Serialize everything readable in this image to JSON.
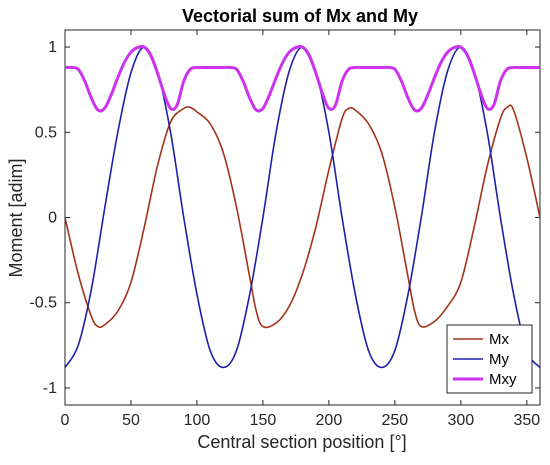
{
  "chart_data": {
    "type": "line",
    "title": "Vectorial sum of Mx and My",
    "xlabel": "Central section position [°]",
    "ylabel": "Moment [adim]",
    "xlim": [
      0,
      360
    ],
    "ylim": [
      -1.1,
      1.1
    ],
    "xticks": [
      0,
      50,
      100,
      150,
      200,
      250,
      300,
      350
    ],
    "xtick_labels": [
      "0",
      "50",
      "100",
      "150",
      "200",
      "250",
      "300",
      "350"
    ],
    "yticks": [
      -1,
      -0.5,
      0,
      0.5,
      1
    ],
    "ytick_labels": [
      "-1",
      "-0.5",
      "0",
      "0.5",
      "1"
    ],
    "grid": false,
    "legend_position": "bottom-right",
    "series": [
      {
        "name": "Mx",
        "color": "#A2331A",
        "x": [
          0,
          10,
          20,
          25,
          30,
          40,
          50,
          60,
          70,
          80,
          90,
          95,
          100,
          110,
          120,
          130,
          140,
          145,
          150,
          160,
          170,
          180,
          190,
          200,
          210,
          215,
          220,
          230,
          240,
          250,
          260,
          265,
          270,
          280,
          290,
          300,
          310,
          320,
          330,
          335,
          340,
          350,
          360
        ],
        "values": [
          0,
          -0.33,
          -0.58,
          -0.64,
          -0.63,
          -0.55,
          -0.38,
          -0.06,
          0.3,
          0.56,
          0.64,
          0.645,
          0.62,
          0.55,
          0.38,
          0.06,
          -0.35,
          -0.55,
          -0.64,
          -0.62,
          -0.52,
          -0.33,
          -0.06,
          0.28,
          0.58,
          0.64,
          0.63,
          0.55,
          0.38,
          0.06,
          -0.35,
          -0.55,
          -0.64,
          -0.61,
          -0.52,
          -0.38,
          -0.06,
          0.3,
          0.58,
          0.645,
          0.63,
          0.35,
          0
        ]
      },
      {
        "name": "My",
        "color": "#1F1FA8",
        "x": [
          0,
          10,
          20,
          30,
          40,
          50,
          60,
          70,
          80,
          90,
          100,
          110,
          120,
          130,
          140,
          150,
          160,
          170,
          180,
          190,
          200,
          210,
          220,
          230,
          240,
          250,
          260,
          270,
          280,
          290,
          300,
          310,
          320,
          330,
          340,
          350,
          360
        ],
        "values": [
          -0.88,
          -0.75,
          -0.42,
          0.05,
          0.5,
          0.85,
          1.0,
          0.86,
          0.5,
          0.0,
          -0.45,
          -0.78,
          -0.88,
          -0.78,
          -0.45,
          0.0,
          0.5,
          0.86,
          1.0,
          0.86,
          0.5,
          0.0,
          -0.45,
          -0.78,
          -0.88,
          -0.78,
          -0.45,
          0.0,
          0.5,
          0.86,
          1.0,
          0.86,
          0.5,
          0.0,
          -0.45,
          -0.78,
          -0.88
        ]
      },
      {
        "name": "Mxy",
        "color": "#CC33EE",
        "x": [
          0,
          5,
          10,
          15,
          20,
          25,
          30,
          35,
          40,
          45,
          50,
          55,
          60,
          65,
          70,
          75,
          80,
          85,
          90,
          95,
          100,
          105,
          110,
          115,
          120,
          125,
          130,
          135,
          140,
          145,
          150,
          155,
          160,
          165,
          170,
          175,
          180,
          185,
          190,
          195,
          200,
          205,
          210,
          215,
          220,
          225,
          230,
          235,
          240,
          245,
          250,
          255,
          260,
          265,
          270,
          275,
          280,
          285,
          290,
          295,
          300,
          305,
          310,
          315,
          320,
          325,
          330,
          335,
          340,
          345,
          350,
          355,
          360
        ],
        "values": [
          0.88,
          0.88,
          0.87,
          0.8,
          0.7,
          0.63,
          0.64,
          0.72,
          0.82,
          0.91,
          0.97,
          0.997,
          1.0,
          0.95,
          0.85,
          0.73,
          0.64,
          0.66,
          0.8,
          0.87,
          0.88,
          0.88,
          0.88,
          0.88,
          0.88,
          0.88,
          0.87,
          0.8,
          0.7,
          0.63,
          0.64,
          0.72,
          0.82,
          0.91,
          0.97,
          0.997,
          1.0,
          0.95,
          0.85,
          0.73,
          0.64,
          0.66,
          0.8,
          0.87,
          0.88,
          0.88,
          0.88,
          0.88,
          0.88,
          0.88,
          0.87,
          0.8,
          0.7,
          0.63,
          0.64,
          0.72,
          0.82,
          0.91,
          0.97,
          0.997,
          1.0,
          0.95,
          0.85,
          0.73,
          0.64,
          0.66,
          0.8,
          0.87,
          0.88,
          0.88,
          0.88,
          0.88,
          0.88
        ]
      }
    ]
  }
}
